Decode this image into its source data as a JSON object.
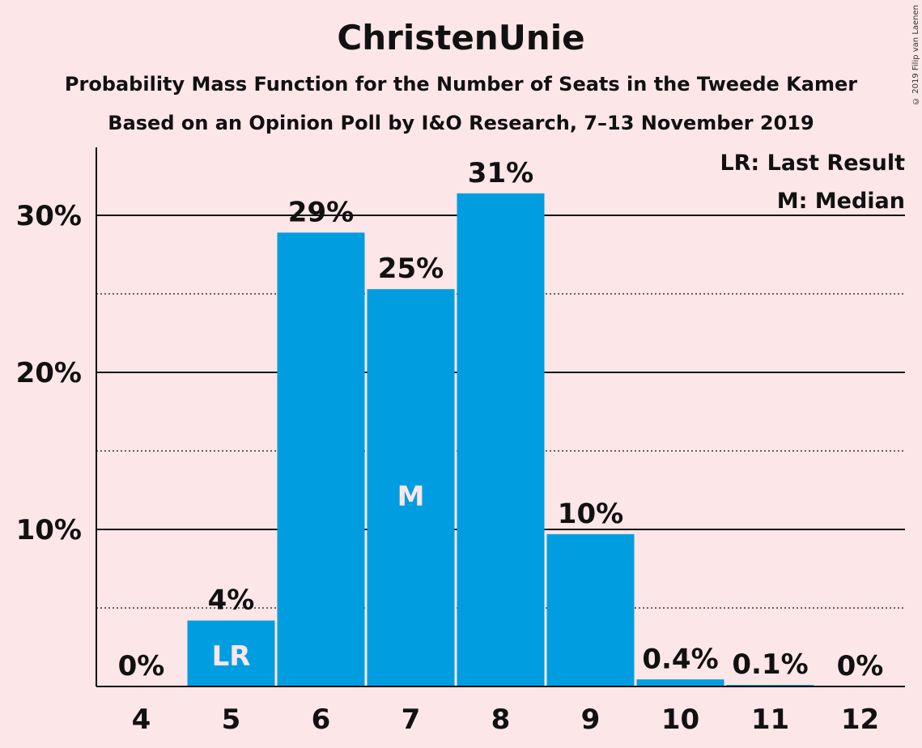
{
  "chart_data": {
    "type": "bar",
    "title": "ChristenUnie",
    "subtitle": "Probability Mass Function for the Number of Seats in the Tweede Kamer",
    "subtitle2": "Based on an Opinion Poll by I&O Research, 7–13 November 2019",
    "copyright": "© 2019 Filip van Laenen",
    "categories": [
      "4",
      "5",
      "6",
      "7",
      "8",
      "9",
      "10",
      "11",
      "12"
    ],
    "values": [
      0,
      4.2,
      28.9,
      25.3,
      31.4,
      9.7,
      0.45,
      0.1,
      0
    ],
    "data_labels": [
      "0%",
      "4%",
      "29%",
      "25%",
      "31%",
      "10%",
      "0.4%",
      "0.1%",
      "0%"
    ],
    "bar_markers": [
      "",
      "LR",
      "",
      "M",
      "",
      "",
      "",
      "",
      ""
    ],
    "ylim": [
      0,
      34
    ],
    "yticks": [
      10,
      20,
      30
    ],
    "ytick_labels": [
      "10%",
      "20%",
      "30%"
    ],
    "minor_gridlines": [
      5,
      15,
      25
    ],
    "legend": [
      "LR: Last Result",
      "M: Median"
    ],
    "legend_position": "top-right",
    "colors": {
      "bar": "#009ee0",
      "background": "#fde6e8",
      "text": "#111111"
    }
  }
}
